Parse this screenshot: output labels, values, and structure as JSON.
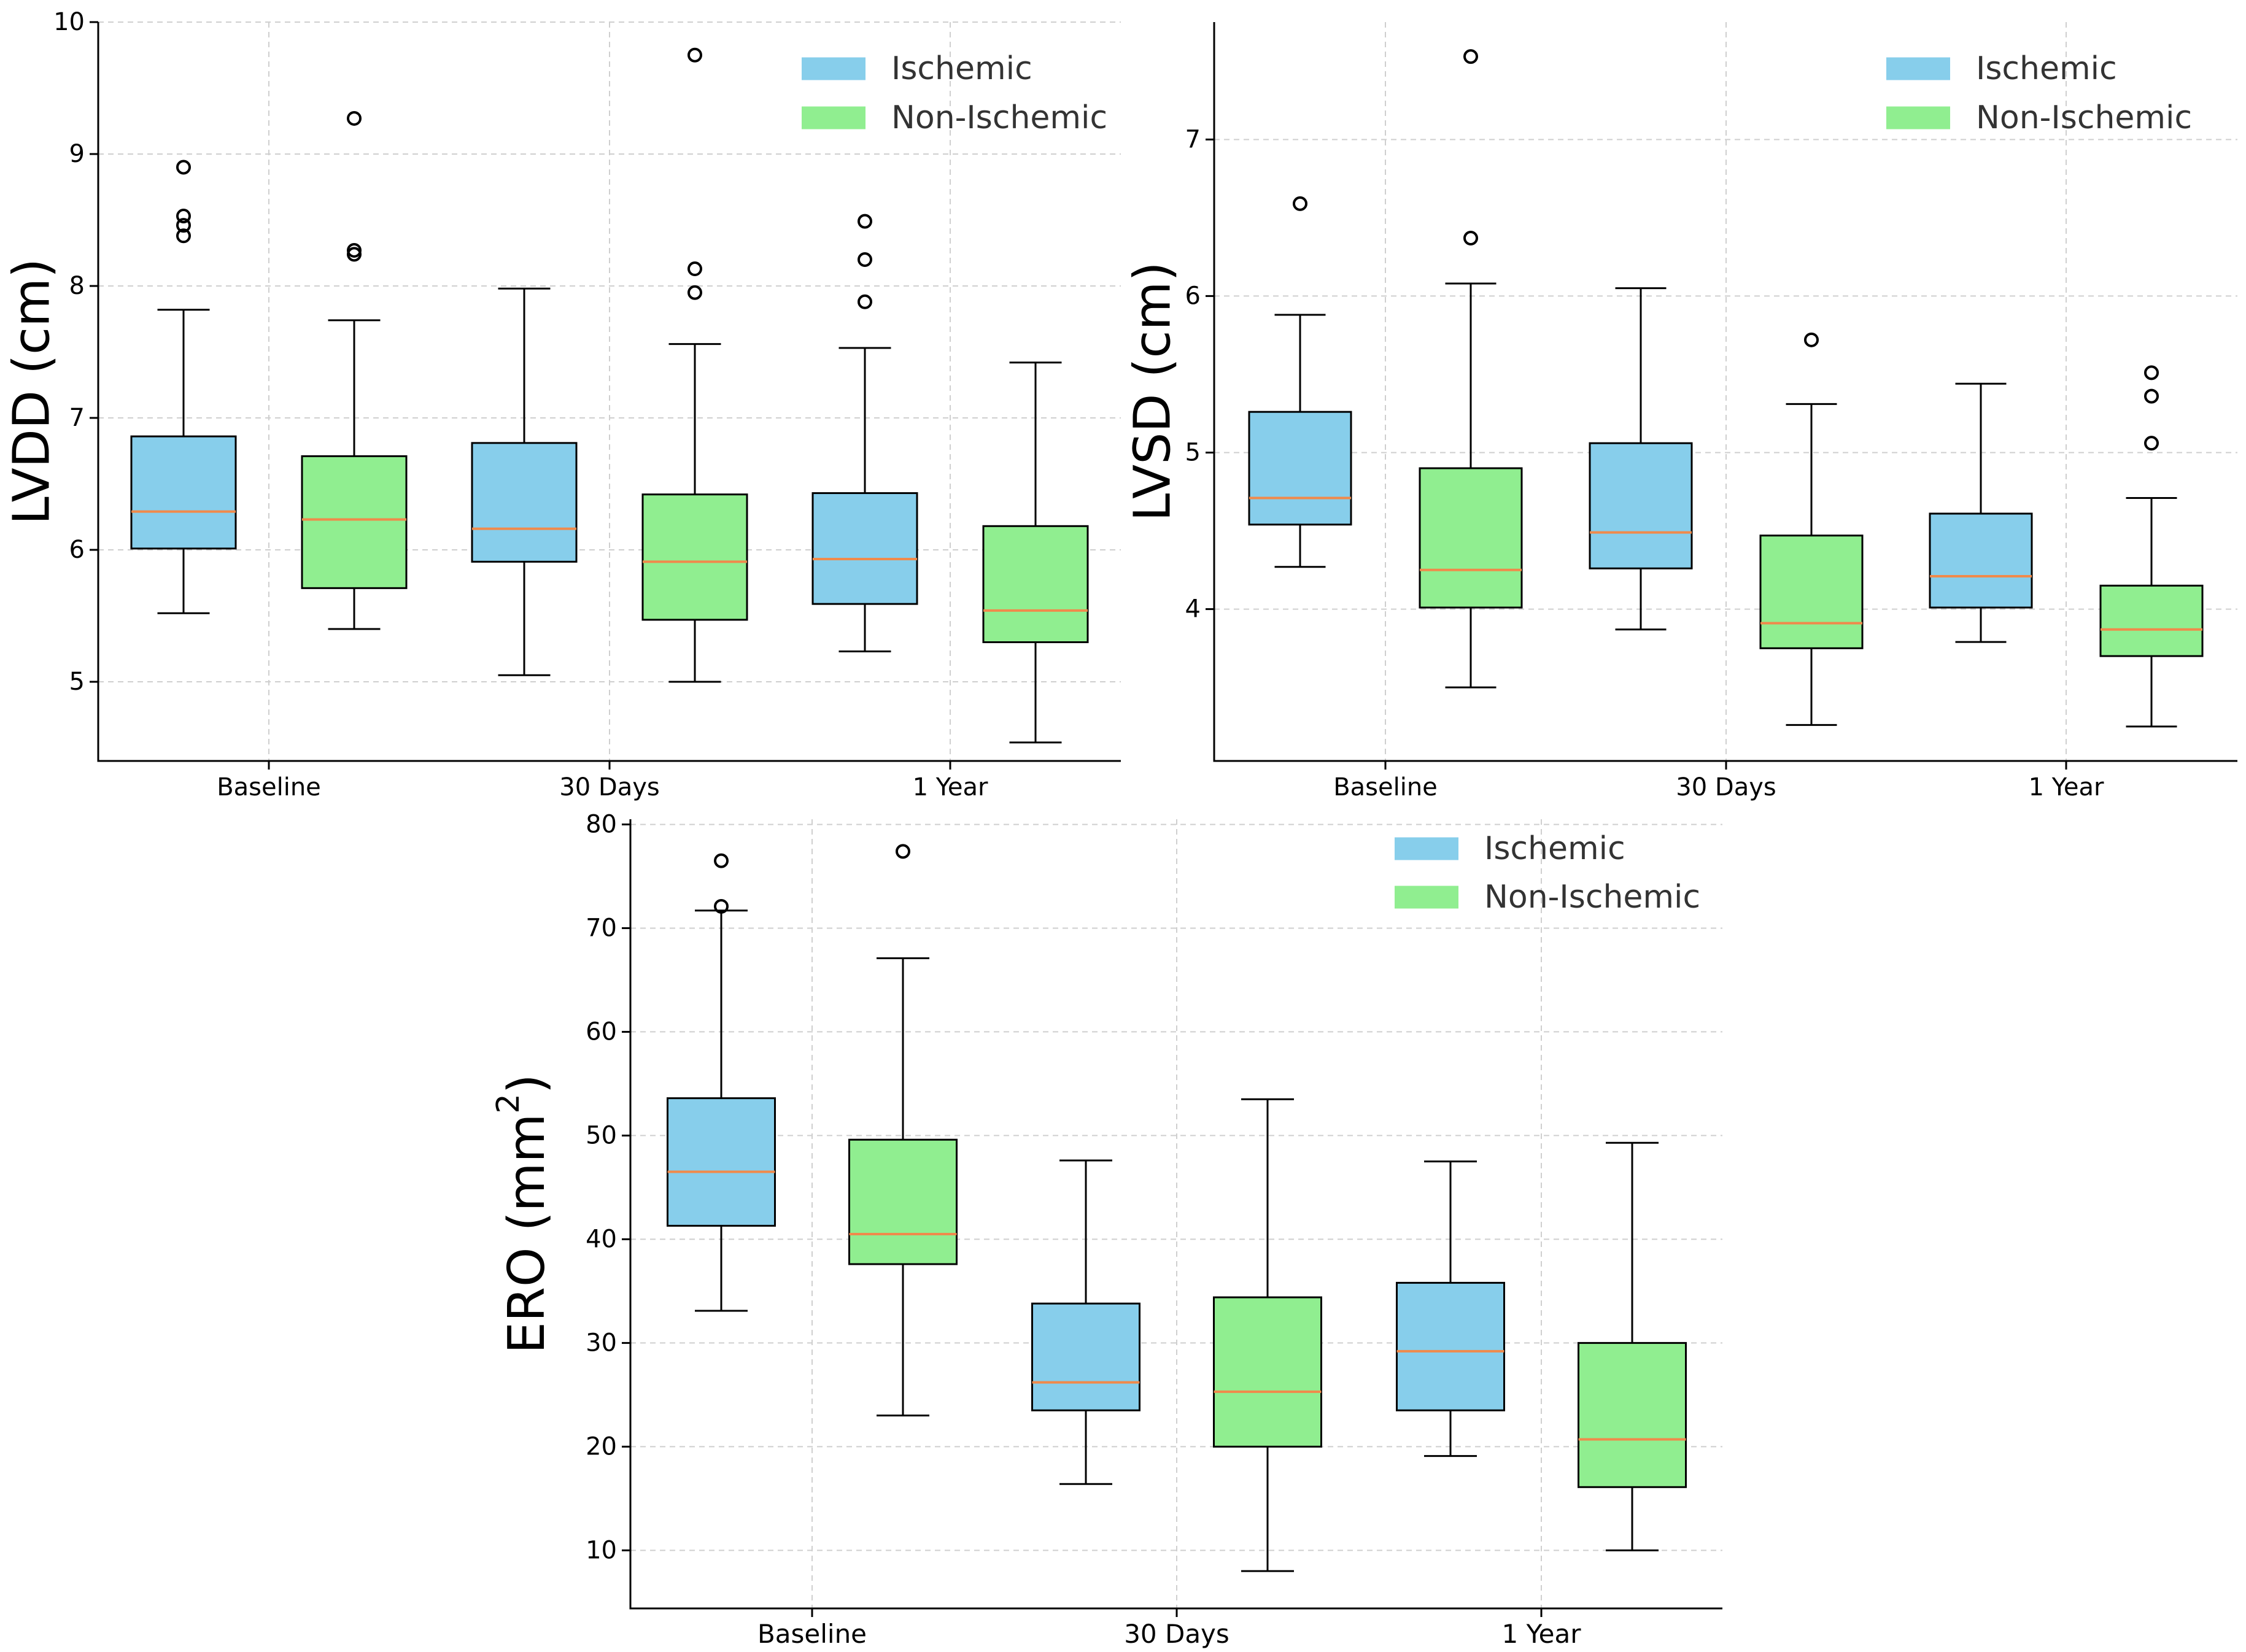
{
  "colors": {
    "ischemic": "#87ceeb",
    "non_ischemic": "#90ee90",
    "median": "#f08a4b"
  },
  "chart_data": [
    {
      "type": "box",
      "title": "",
      "xlabel": "",
      "ylabel": "LVDD (cm)",
      "categories": [
        "Baseline",
        "30 Days",
        "1 Year"
      ],
      "legend": [
        "Ischemic",
        "Non-Ischemic"
      ],
      "legend_position": "top-right",
      "grid": true,
      "ylim": [
        4.4,
        10
      ],
      "yticks": [
        5,
        6,
        7,
        8,
        9,
        10
      ],
      "series": [
        {
          "name": "Ischemic",
          "boxes": [
            {
              "whislo": 5.52,
              "q1": 6.01,
              "med": 6.29,
              "q3": 6.86,
              "whishi": 7.82,
              "fliers": [
                8.38,
                8.46,
                8.53,
                8.9
              ]
            },
            {
              "whislo": 5.05,
              "q1": 5.91,
              "med": 6.16,
              "q3": 6.81,
              "whishi": 7.98,
              "fliers": []
            },
            {
              "whislo": 5.23,
              "q1": 5.59,
              "med": 5.93,
              "q3": 6.43,
              "whishi": 7.53,
              "fliers": [
                7.88,
                8.2,
                8.49
              ]
            }
          ]
        },
        {
          "name": "Non-Ischemic",
          "boxes": [
            {
              "whislo": 5.4,
              "q1": 5.71,
              "med": 6.23,
              "q3": 6.71,
              "whishi": 7.74,
              "fliers": [
                8.24,
                8.27,
                9.27
              ]
            },
            {
              "whislo": 5.0,
              "q1": 5.47,
              "med": 5.91,
              "q3": 6.42,
              "whishi": 7.56,
              "fliers": [
                7.95,
                8.13,
                9.75
              ]
            },
            {
              "whislo": 4.54,
              "q1": 5.3,
              "med": 5.54,
              "q3": 6.18,
              "whishi": 7.42,
              "fliers": []
            }
          ]
        }
      ]
    },
    {
      "type": "box",
      "title": "",
      "xlabel": "",
      "ylabel": "LVSD (cm)",
      "categories": [
        "Baseline",
        "30 Days",
        "1 Year"
      ],
      "legend": [
        "Ischemic",
        "Non-Ischemic"
      ],
      "legend_position": "top-right",
      "grid": true,
      "ylim": [
        3.03,
        7.75
      ],
      "yticks": [
        4,
        5,
        6,
        7
      ],
      "series": [
        {
          "name": "Ischemic",
          "boxes": [
            {
              "whislo": 4.27,
              "q1": 4.54,
              "med": 4.71,
              "q3": 5.26,
              "whishi": 5.88,
              "fliers": [
                6.59
              ]
            },
            {
              "whislo": 3.87,
              "q1": 4.26,
              "med": 4.49,
              "q3": 5.06,
              "whishi": 6.05,
              "fliers": []
            },
            {
              "whislo": 3.79,
              "q1": 4.01,
              "med": 4.21,
              "q3": 4.61,
              "whishi": 5.44,
              "fliers": []
            }
          ]
        },
        {
          "name": "Non-Ischemic",
          "boxes": [
            {
              "whislo": 3.5,
              "q1": 4.01,
              "med": 4.25,
              "q3": 4.9,
              "whishi": 6.08,
              "fliers": [
                6.37,
                7.53
              ]
            },
            {
              "whislo": 3.26,
              "q1": 3.75,
              "med": 3.91,
              "q3": 4.47,
              "whishi": 5.31,
              "fliers": [
                5.72
              ]
            },
            {
              "whislo": 3.25,
              "q1": 3.7,
              "med": 3.87,
              "q3": 4.15,
              "whishi": 4.71,
              "fliers": [
                5.06,
                5.36,
                5.51
              ]
            }
          ]
        }
      ]
    },
    {
      "type": "box",
      "title": "",
      "xlabel": "",
      "ylabel": "ERO (mm²)",
      "categories": [
        "Baseline",
        "30 Days",
        "1 Year"
      ],
      "legend": [
        "Ischemic",
        "Non-Ischemic"
      ],
      "legend_position": "top-right",
      "grid": true,
      "ylim": [
        4.4,
        80.5
      ],
      "yticks": [
        10,
        20,
        30,
        40,
        50,
        60,
        70,
        80
      ],
      "series": [
        {
          "name": "Ischemic",
          "boxes": [
            {
              "whislo": 33.1,
              "q1": 41.3,
              "med": 46.5,
              "q3": 53.6,
              "whishi": 71.7,
              "fliers": [
                72.1,
                76.5
              ]
            },
            {
              "whislo": 16.4,
              "q1": 23.5,
              "med": 26.2,
              "q3": 33.8,
              "whishi": 47.6,
              "fliers": []
            },
            {
              "whislo": 19.1,
              "q1": 23.5,
              "med": 29.2,
              "q3": 35.8,
              "whishi": 47.5,
              "fliers": []
            }
          ]
        },
        {
          "name": "Non-Ischemic",
          "boxes": [
            {
              "whislo": 23.0,
              "q1": 37.6,
              "med": 40.5,
              "q3": 49.6,
              "whishi": 67.1,
              "fliers": [
                77.4
              ]
            },
            {
              "whislo": 8.0,
              "q1": 20.0,
              "med": 25.3,
              "q3": 34.4,
              "whishi": 53.5,
              "fliers": []
            },
            {
              "whislo": 10.0,
              "q1": 16.1,
              "med": 20.7,
              "q3": 30.0,
              "whishi": 49.3,
              "fliers": []
            }
          ]
        }
      ]
    }
  ]
}
